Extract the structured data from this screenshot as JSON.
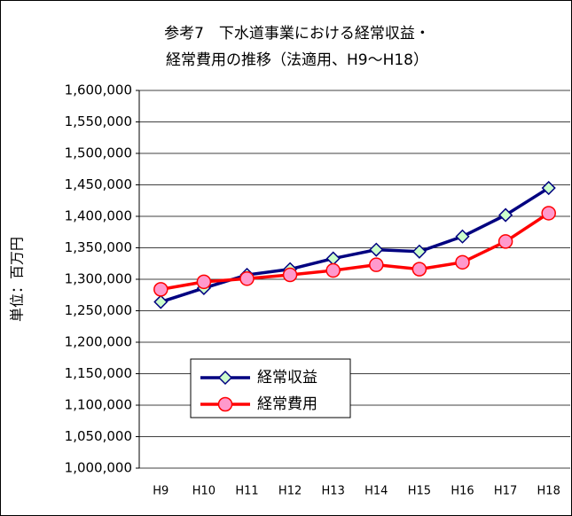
{
  "chart_data": {
    "type": "line",
    "title": [
      "参考7　下水道事業における経常収益・",
      "経常費用の推移（法適用、H9～H18）"
    ],
    "y_label": "単位：百万円",
    "categories": [
      "H9",
      "H10",
      "H11",
      "H12",
      "H13",
      "H14",
      "H15",
      "H16",
      "H17",
      "H18"
    ],
    "series": [
      {
        "name": "経常収益",
        "color": "#000080",
        "marker": "diamond",
        "marker_color": "#ccffcc",
        "values": [
          1264000,
          1286000,
          1307000,
          1316000,
          1333000,
          1347000,
          1344000,
          1368000,
          1402000,
          1445000
        ]
      },
      {
        "name": "経常費用",
        "color": "#ff0000",
        "marker": "circle",
        "marker_color": "#ff99cc",
        "values": [
          1284000,
          1296000,
          1301000,
          1307000,
          1314000,
          1323000,
          1316000,
          1327000,
          1360000,
          1405000
        ]
      }
    ],
    "ylim": [
      1000000,
      1600000
    ],
    "yticks": [
      {
        "value": 1000000,
        "label": "1,000,000"
      },
      {
        "value": 1050000,
        "label": "1,050,000"
      },
      {
        "value": 1100000,
        "label": "1,100,000"
      },
      {
        "value": 1150000,
        "label": "1,150,000"
      },
      {
        "value": 1200000,
        "label": "1,200,000"
      },
      {
        "value": 1250000,
        "label": "1,250,000"
      },
      {
        "value": 1300000,
        "label": "1,300,000"
      },
      {
        "value": 1350000,
        "label": "1,350,000"
      },
      {
        "value": 1400000,
        "label": "1,400,000"
      },
      {
        "value": 1450000,
        "label": "1,450,000"
      },
      {
        "value": 1500000,
        "label": "1,500,000"
      },
      {
        "value": 1550000,
        "label": "1,550,000"
      },
      {
        "value": 1600000,
        "label": "1,600,000"
      }
    ],
    "grid": true
  }
}
